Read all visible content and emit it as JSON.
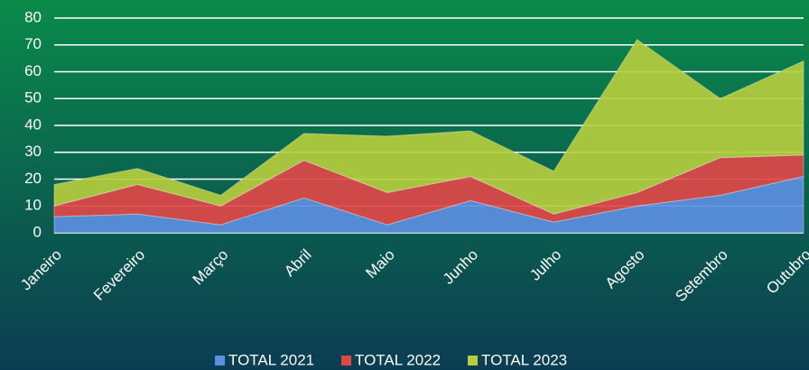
{
  "chart_data": {
    "type": "stacked_area",
    "categories": [
      "Janeiro",
      "Fevereiro",
      "Março",
      "Abril",
      "Maio",
      "Junho",
      "Julho",
      "Agosto",
      "Setembro",
      "Outubro"
    ],
    "series": [
      {
        "name": "TOTAL 2021",
        "color": "#5b8fe0",
        "values": [
          6,
          7,
          3,
          13,
          3,
          12,
          4,
          10,
          14,
          21
        ]
      },
      {
        "name": "TOTAL 2022",
        "color": "#e04848",
        "values": [
          4,
          11,
          7,
          14,
          12,
          9,
          3,
          5,
          14,
          8
        ]
      },
      {
        "name": "TOTAL 2023",
        "color": "#b5cc3e",
        "values": [
          8,
          6,
          4,
          10,
          21,
          17,
          16,
          57,
          22,
          35
        ]
      }
    ],
    "ylim": [
      0,
      80
    ],
    "yticks": [
      0,
      10,
      20,
      30,
      40,
      50,
      60,
      70,
      80
    ],
    "grid": true,
    "legend": "bottom"
  }
}
